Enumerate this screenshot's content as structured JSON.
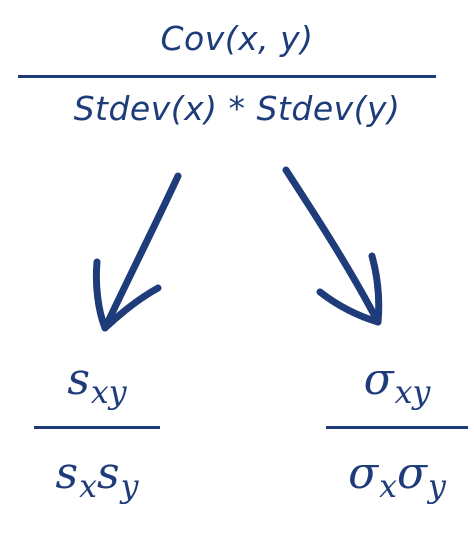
{
  "top_formula": {
    "numerator": "Cov(x, y)",
    "denominator": "Stdev(x) * Stdev(y)"
  },
  "sample_formula": {
    "numerator": {
      "base": "s",
      "sub": "xy"
    },
    "denominator": [
      {
        "base": "s",
        "sub": "x"
      },
      {
        "base": "s",
        "sub": "y"
      }
    ]
  },
  "population_formula": {
    "numerator": {
      "base": "σ",
      "sub": "xy"
    },
    "denominator": [
      {
        "base": "σ",
        "sub": "x"
      },
      {
        "base": "σ",
        "sub": "y"
      }
    ]
  },
  "colors": {
    "ink": "#1f3c7a",
    "background": "#ffffff"
  }
}
